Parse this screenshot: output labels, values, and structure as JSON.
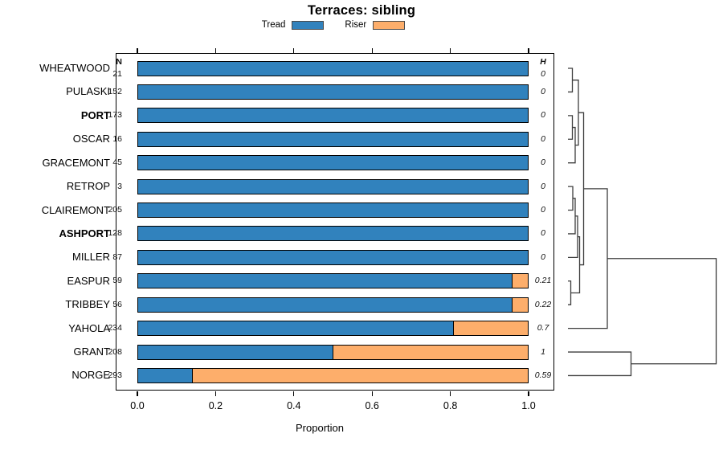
{
  "title": "Terraces: sibling",
  "legend": {
    "items": [
      {
        "label": "Tread",
        "color": "#3182bd"
      },
      {
        "label": "Riser",
        "color": "#fdae6b"
      }
    ]
  },
  "columns": {
    "n_header": "N",
    "h_header": "H"
  },
  "x_axis": {
    "label": "Proportion",
    "ticks": [
      "0.0",
      "0.2",
      "0.4",
      "0.6",
      "0.8",
      "1.0"
    ]
  },
  "chart_data": {
    "type": "bar",
    "orientation": "horizontal-stacked",
    "title": "Terraces: sibling",
    "xlabel": "Proportion",
    "xlim": [
      0,
      1
    ],
    "series_names": [
      "Tread",
      "Riser"
    ],
    "rows": [
      {
        "site": "WHEATWOOD",
        "bold": false,
        "n": "21",
        "tread": 1.0,
        "riser": 0.0,
        "h": "0"
      },
      {
        "site": "PULASKI",
        "bold": false,
        "n": "152",
        "tread": 1.0,
        "riser": 0.0,
        "h": "0"
      },
      {
        "site": "PORT",
        "bold": true,
        "n": "173",
        "tread": 1.0,
        "riser": 0.0,
        "h": "0"
      },
      {
        "site": "OSCAR",
        "bold": false,
        "n": "16",
        "tread": 1.0,
        "riser": 0.0,
        "h": "0"
      },
      {
        "site": "GRACEMONT",
        "bold": false,
        "n": "45",
        "tread": 1.0,
        "riser": 0.0,
        "h": "0"
      },
      {
        "site": "RETROP",
        "bold": false,
        "n": "3",
        "tread": 1.0,
        "riser": 0.0,
        "h": "0"
      },
      {
        "site": "CLAIREMONT",
        "bold": false,
        "n": "205",
        "tread": 1.0,
        "riser": 0.0,
        "h": "0"
      },
      {
        "site": "ASHPORT",
        "bold": true,
        "n": "128",
        "tread": 1.0,
        "riser": 0.0,
        "h": "0"
      },
      {
        "site": "MILLER",
        "bold": false,
        "n": "87",
        "tread": 1.0,
        "riser": 0.0,
        "h": "0"
      },
      {
        "site": "EASPUR",
        "bold": false,
        "n": "59",
        "tread": 0.96,
        "riser": 0.04,
        "h": "0.21"
      },
      {
        "site": "TRIBBEY",
        "bold": false,
        "n": "56",
        "tread": 0.96,
        "riser": 0.04,
        "h": "0.22"
      },
      {
        "site": "YAHOLA",
        "bold": false,
        "n": "234",
        "tread": 0.81,
        "riser": 0.19,
        "h": "0.7"
      },
      {
        "site": "GRANT",
        "bold": false,
        "n": "208",
        "tread": 0.5,
        "riser": 0.5,
        "h": "1"
      },
      {
        "site": "NORGE",
        "bold": false,
        "n": "293",
        "tread": 0.14,
        "riser": 0.86,
        "h": "0.59"
      }
    ],
    "dendrogram": {
      "line_color": "#3d3d3d",
      "merges": [
        {
          "id": "A",
          "children": [
            "WHEATWOOD",
            "PULASKI"
          ],
          "x": 712.5
        },
        {
          "id": "B",
          "children": [
            "PORT",
            "OSCAR"
          ],
          "x": 712.5
        },
        {
          "id": "C",
          "children": [
            "B",
            "GRACEMONT"
          ],
          "x": 716
        },
        {
          "id": "D",
          "children": [
            "A",
            "C"
          ],
          "x": 720
        },
        {
          "id": "E",
          "children": [
            "RETROP",
            "CLAIREMONT"
          ],
          "x": 713
        },
        {
          "id": "F",
          "children": [
            "E",
            "ASHPORT"
          ],
          "x": 716
        },
        {
          "id": "G",
          "children": [
            "F",
            "MILLER"
          ],
          "x": 719
        },
        {
          "id": "M1",
          "children": [
            "EASPUR",
            "TRIBBEY"
          ],
          "x": 710.5
        },
        {
          "id": "M2",
          "children": [
            "G",
            "M1"
          ],
          "x": 721.5
        },
        {
          "id": "P",
          "children": [
            "D",
            "M2"
          ],
          "x": 726.5
        },
        {
          "id": "Q",
          "children": [
            "P",
            "YAHOLA"
          ],
          "x": 756
        },
        {
          "id": "R2",
          "children": [
            "GRANT",
            "NORGE"
          ],
          "x": 785.5
        },
        {
          "id": "ROOT",
          "children": [
            "Q",
            "R2"
          ],
          "x": 891.5
        }
      ]
    }
  }
}
